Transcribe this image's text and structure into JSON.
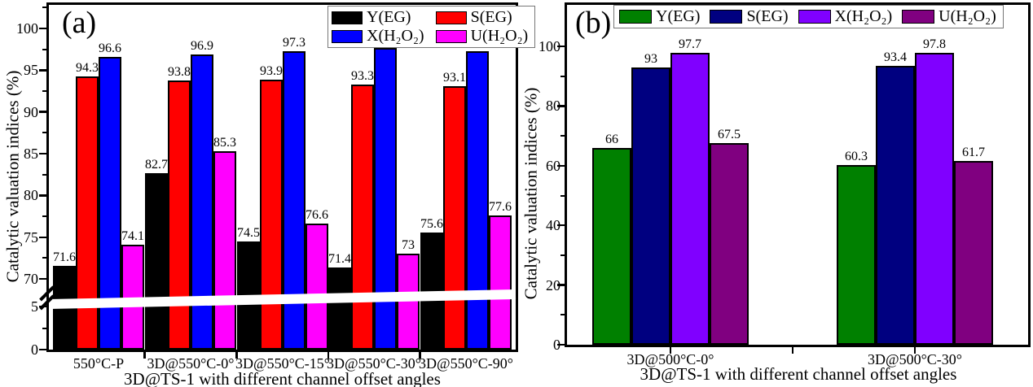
{
  "chart_data": [
    {
      "type": "bar",
      "panel_label": "(a)",
      "ylabel": "Catalytic valuation indices (%)",
      "xlabel": "3D@TS-1  with different channel offset angles",
      "categories": [
        "550°C-P",
        "3D@550°C-0°",
        "3D@550°C-15°",
        "3D@550°C-30°",
        "3D@550°C-90°"
      ],
      "series": [
        {
          "name": "Y(EG)",
          "color": "#000000",
          "values": [
            71.6,
            82.7,
            74.5,
            71.4,
            75.6
          ]
        },
        {
          "name": "S(EG)",
          "color": "#ff0000",
          "values": [
            94.3,
            93.8,
            93.9,
            93.3,
            93.1
          ]
        },
        {
          "name": "X(H₂O₂)",
          "color": "#0000ff",
          "values": [
            96.6,
            96.9,
            97.3,
            97.7,
            97.3
          ]
        },
        {
          "name": "U(H₂O₂)",
          "color": "#ff00ff",
          "values": [
            74.1,
            85.3,
            76.6,
            73,
            77.6
          ]
        }
      ],
      "y_tick_labels_upper": [
        "70",
        "75",
        "80",
        "85",
        "90",
        "95",
        "100"
      ],
      "y_tick_labels_lower": [
        "0",
        "5"
      ],
      "axis_break": {
        "lower_range": [
          0,
          6
        ],
        "upper_range": [
          65,
          103
        ]
      },
      "value_labels_shown": true,
      "legend_position": "top-center-inside",
      "grid": false
    },
    {
      "type": "bar",
      "panel_label": "(b)",
      "ylabel": "Catalytic valuation indices (%)",
      "xlabel": "3D@TS-1  with different channel offset angles",
      "categories": [
        "3D@500°C-0°",
        "3D@500°C-30°"
      ],
      "series": [
        {
          "name": "Y(EG)",
          "color": "#008000",
          "values": [
            66,
            60.3
          ]
        },
        {
          "name": "S(EG)",
          "color": "#000080",
          "values": [
            93,
            93.4
          ]
        },
        {
          "name": "X(H₂O₂)",
          "color": "#8000ff",
          "values": [
            97.7,
            97.8
          ]
        },
        {
          "name": "U(H₂O₂)",
          "color": "#800080",
          "values": [
            67.5,
            61.7
          ]
        }
      ],
      "y_tick_labels": [
        "0",
        "20",
        "40",
        "60",
        "80",
        "100"
      ],
      "ylim": [
        0,
        103
      ],
      "value_labels_shown": true,
      "legend_position": "top-inside",
      "grid": false
    }
  ]
}
